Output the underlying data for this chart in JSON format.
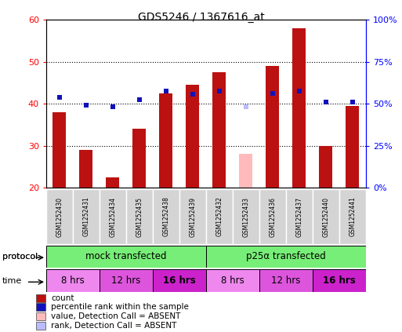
{
  "title": "GDS5246 / 1367616_at",
  "samples": [
    "GSM1252430",
    "GSM1252431",
    "GSM1252434",
    "GSM1252435",
    "GSM1252438",
    "GSM1252439",
    "GSM1252432",
    "GSM1252433",
    "GSM1252436",
    "GSM1252437",
    "GSM1252440",
    "GSM1252441"
  ],
  "count_values": [
    38,
    29,
    22.5,
    34,
    42.5,
    44.5,
    47.5,
    null,
    49,
    58,
    30,
    39.5
  ],
  "rank_values": [
    41.5,
    39.7,
    39.2,
    41.0,
    43.0,
    42.2,
    43.0,
    null,
    42.5,
    43.0,
    40.5,
    40.5
  ],
  "absent_count": [
    null,
    null,
    null,
    null,
    null,
    null,
    null,
    28,
    null,
    null,
    null,
    null
  ],
  "absent_rank": [
    null,
    null,
    null,
    null,
    null,
    null,
    null,
    39.3,
    null,
    null,
    null,
    null
  ],
  "count_color": "#bb1111",
  "rank_color": "#1111bb",
  "absent_count_color": "#ffbbbb",
  "absent_rank_color": "#bbbbff",
  "protocol_labels": [
    "mock transfected",
    "p25α transfected"
  ],
  "protocol_starts": [
    0,
    6
  ],
  "protocol_ends": [
    6,
    12
  ],
  "protocol_color": "#77ee77",
  "time_labels": [
    "8 hrs",
    "12 hrs",
    "16 hrs",
    "8 hrs",
    "12 hrs",
    "16 hrs"
  ],
  "time_starts": [
    0,
    2,
    4,
    6,
    8,
    10
  ],
  "time_ends": [
    2,
    4,
    6,
    8,
    10,
    12
  ],
  "time_colors": [
    "#ee88ee",
    "#dd55dd",
    "#cc22cc",
    "#ee88ee",
    "#dd55dd",
    "#cc22cc"
  ],
  "time_bold": [
    false,
    false,
    true,
    false,
    false,
    true
  ],
  "ylim_left": [
    20,
    60
  ],
  "ylim_right": [
    0,
    100
  ],
  "yticks_left": [
    20,
    30,
    40,
    50,
    60
  ],
  "yticks_right": [
    0,
    25,
    50,
    75,
    100
  ],
  "ytick_labels_right": [
    "0%",
    "25%",
    "50%",
    "75%",
    "100%"
  ],
  "bar_width": 0.5,
  "legend_items": [
    {
      "color": "#bb1111",
      "label": "count"
    },
    {
      "color": "#1111bb",
      "label": "percentile rank within the sample"
    },
    {
      "color": "#ffbbbb",
      "label": "value, Detection Call = ABSENT"
    },
    {
      "color": "#bbbbff",
      "label": "rank, Detection Call = ABSENT"
    }
  ]
}
